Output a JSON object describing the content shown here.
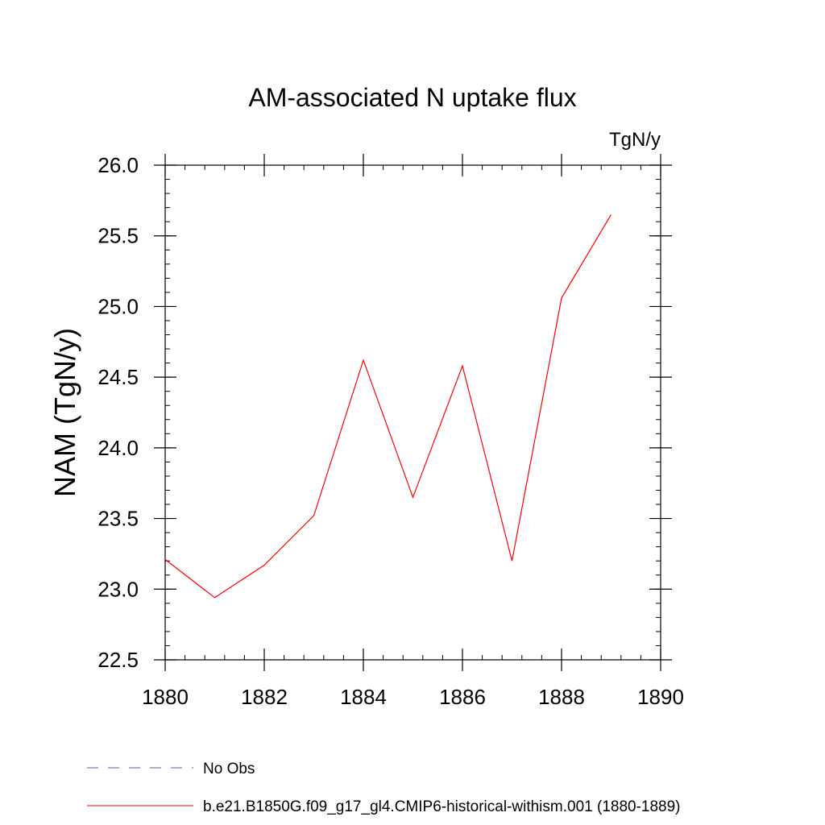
{
  "chart_data": {
    "type": "line",
    "title": "AM-associated N uptake flux",
    "units_label": "TgN/y",
    "ylabel": "NAM  (TgN/y)",
    "xlabel": "",
    "xlim": [
      1880,
      1890
    ],
    "ylim": [
      22.5,
      26.0
    ],
    "x_ticks": [
      1880,
      1882,
      1884,
      1886,
      1888,
      1890
    ],
    "x_tick_labels": [
      "1880",
      "1882",
      "1884",
      "1886",
      "1888",
      "1890"
    ],
    "y_ticks": [
      22.5,
      23.0,
      23.5,
      24.0,
      24.5,
      25.0,
      25.5,
      26.0
    ],
    "y_tick_labels": [
      "22.5",
      "23.0",
      "23.5",
      "24.0",
      "24.5",
      "25.0",
      "25.5",
      "26.0"
    ],
    "grid": false,
    "legend_position": "bottom",
    "series": [
      {
        "name": "b.e21.B1850G.f09_g17_gl4.CMIP6-historical-withism.001 (1880-1889)",
        "color": "#ff0000",
        "line_style": "solid",
        "x": [
          1880,
          1881,
          1882,
          1883,
          1884,
          1885,
          1886,
          1887,
          1888,
          1889
        ],
        "y": [
          23.21,
          22.94,
          23.17,
          23.52,
          24.62,
          23.65,
          24.58,
          23.2,
          25.06,
          25.65
        ]
      }
    ],
    "legend": [
      {
        "label": "No Obs",
        "color": "#6655aa",
        "line_style": "dashed"
      },
      {
        "label": "b.e21.B1850G.f09_g17_gl4.CMIP6-historical-withism.001 (1880-1889)",
        "color": "#ff0000",
        "line_style": "solid"
      }
    ]
  }
}
